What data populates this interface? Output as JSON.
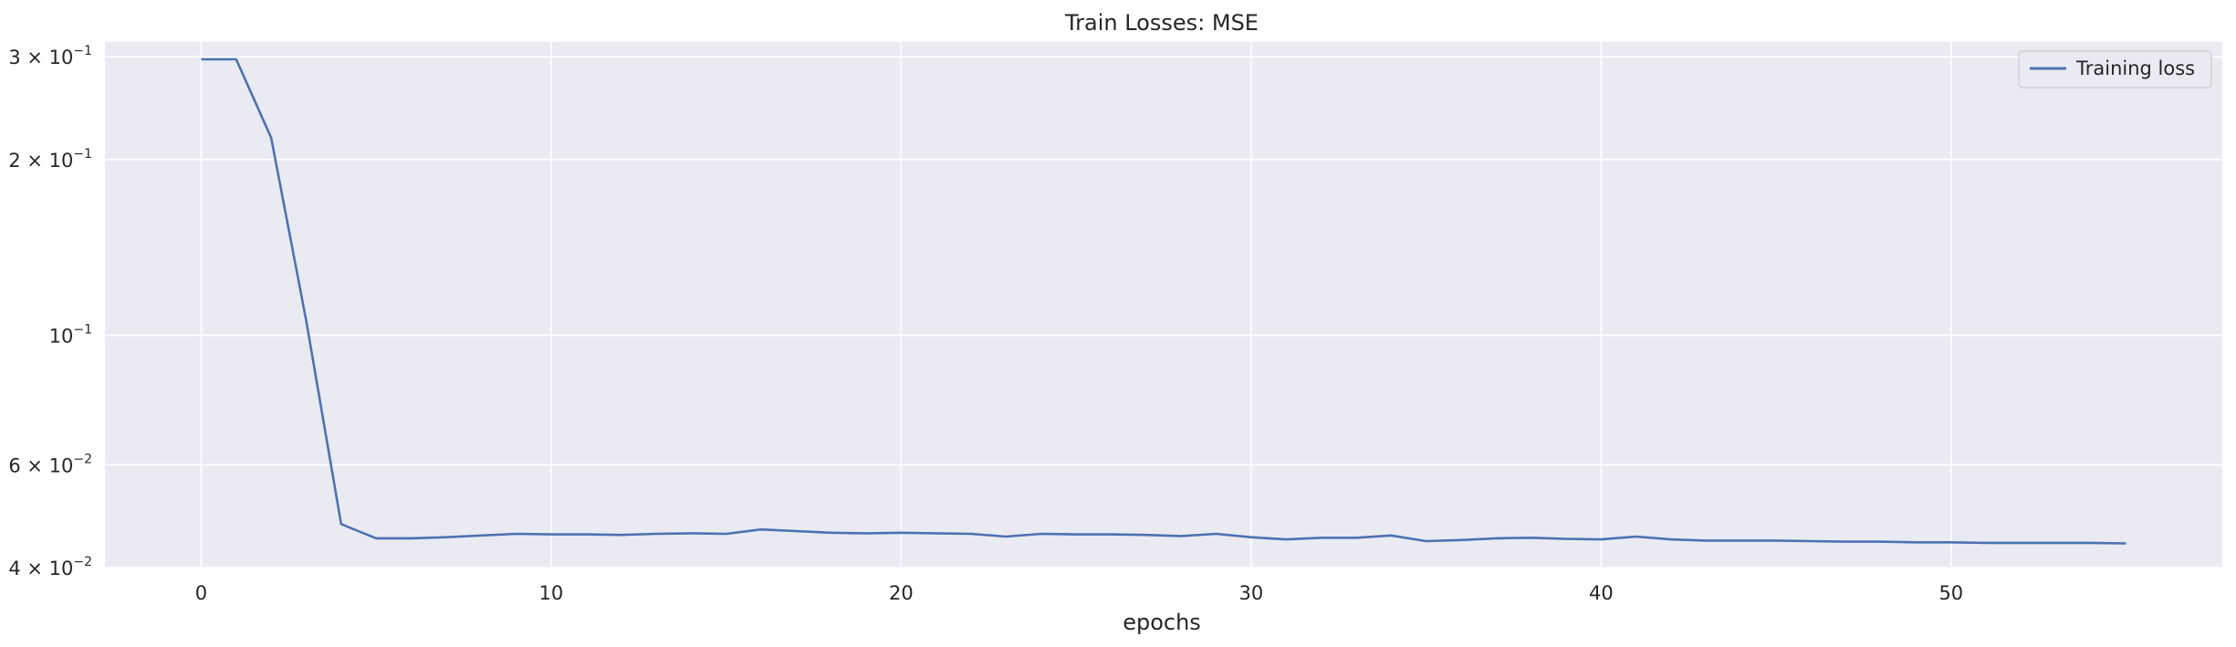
{
  "chart_data": {
    "type": "line",
    "title": "Train Losses:  MSE",
    "xlabel": "epochs",
    "ylabel": "",
    "xlim": [
      -2.75,
      57.75
    ],
    "ylim": [
      0.04,
      0.318
    ],
    "yscale": "log",
    "grid": true,
    "legend_position": "top-right",
    "x_ticks": [
      0,
      10,
      20,
      30,
      40,
      50
    ],
    "y_ticks": [
      {
        "value": 0.3,
        "mantissa": "3",
        "exponent": "−1"
      },
      {
        "value": 0.2,
        "mantissa": "2",
        "exponent": "−1"
      },
      {
        "value": 0.1,
        "mantissa": "",
        "exponent": "−1"
      },
      {
        "value": 0.06,
        "mantissa": "6",
        "exponent": "−2"
      },
      {
        "value": 0.04,
        "mantissa": "4",
        "exponent": "−2"
      }
    ],
    "colors": {
      "plot_bg": "#eaeaf2",
      "grid": "#ffffff",
      "line": "#4c72b0"
    },
    "series": [
      {
        "name": "Training loss",
        "x": [
          0,
          1,
          2,
          3,
          4,
          5,
          6,
          7,
          8,
          9,
          10,
          11,
          12,
          13,
          14,
          15,
          16,
          17,
          18,
          19,
          20,
          21,
          22,
          23,
          24,
          25,
          26,
          27,
          28,
          29,
          30,
          31,
          32,
          33,
          34,
          35,
          36,
          37,
          38,
          39,
          40,
          41,
          42,
          43,
          44,
          45,
          46,
          47,
          48,
          49,
          50,
          51,
          52,
          53,
          54,
          55
        ],
        "y": [
          0.297,
          0.297,
          0.218,
          0.106,
          0.0475,
          0.0449,
          0.0449,
          0.0451,
          0.0454,
          0.0457,
          0.0456,
          0.0456,
          0.0455,
          0.0457,
          0.0458,
          0.0457,
          0.0465,
          0.0462,
          0.0459,
          0.0458,
          0.0459,
          0.0458,
          0.0457,
          0.0452,
          0.0457,
          0.0456,
          0.0456,
          0.0455,
          0.0453,
          0.0457,
          0.0451,
          0.0447,
          0.045,
          0.045,
          0.0454,
          0.0444,
          0.0446,
          0.0449,
          0.045,
          0.0448,
          0.0447,
          0.0452,
          0.0447,
          0.0445,
          0.0445,
          0.0445,
          0.0444,
          0.0443,
          0.0443,
          0.0442,
          0.0442,
          0.0441,
          0.0441,
          0.0441,
          0.0441,
          0.044
        ]
      }
    ]
  }
}
